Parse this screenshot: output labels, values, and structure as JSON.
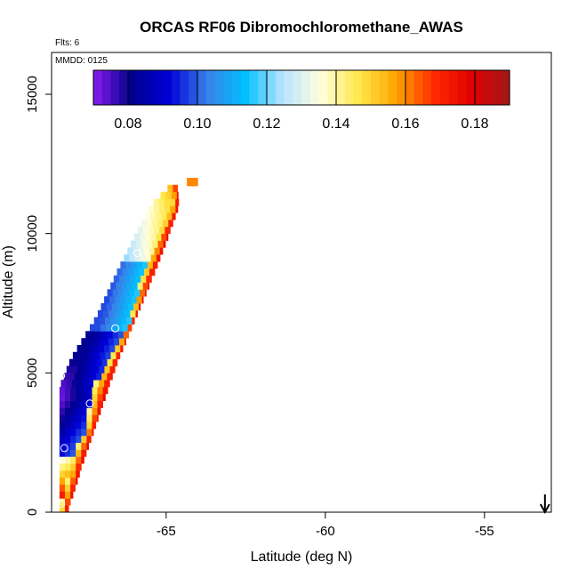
{
  "chart_data": {
    "type": "heatmap",
    "title": "ORCAS RF06 Dibromochloromethane_AWAS",
    "xlabel": "Latitude (deg N)",
    "ylabel": "Altitude (m)",
    "flights_label": "Flts: 6",
    "date_label": "MMDD: 0125",
    "xlim": [
      -68.6,
      -52.9
    ],
    "ylim": [
      0,
      16500
    ],
    "x_ticks": [
      -65,
      -60,
      -55
    ],
    "x_tick_labels": [
      "-65",
      "-60",
      "-55"
    ],
    "y_ticks": [
      0,
      5000,
      10000,
      15000
    ],
    "y_tick_labels": [
      "0",
      "5000",
      "10000",
      "15000"
    ],
    "colorbar": {
      "min": 0.07,
      "max": 0.19,
      "ticks": [
        0.08,
        0.1,
        0.12,
        0.14,
        0.16,
        0.18
      ],
      "tick_labels": [
        "0.08",
        "0.10",
        "0.12",
        "0.14",
        "0.16",
        "0.18"
      ],
      "colors": [
        "#8a1cf0",
        "#00008c",
        "#0000d8",
        "#3a7fe8",
        "#00bfff",
        "#b8e4ff",
        "#ffffe0",
        "#ffe94a",
        "#ffa500",
        "#ff2a00",
        "#e00000",
        "#a01818"
      ]
    },
    "arrow": {
      "lat": -53.1,
      "direction": "down"
    },
    "samples": [
      {
        "lat": -68.3,
        "alt": 300,
        "value": 0.12
      },
      {
        "lat": -68.2,
        "alt": 2300,
        "value": 0.11
      },
      {
        "lat": -68.3,
        "alt": 4900,
        "value": 0.1
      },
      {
        "lat": -67.4,
        "alt": 3900,
        "value": 0.08
      },
      {
        "lat": -66.6,
        "alt": 6600,
        "value": 0.1
      },
      {
        "lat": -65.9,
        "alt": 9300,
        "value": 0.11
      }
    ],
    "band": [
      {
        "y": 0,
        "xl": -68.35,
        "inner": -68.35,
        "xr": -68.1
      },
      {
        "y": 2000,
        "xl": -68.35,
        "inner": -67.95,
        "xr": -67.55
      },
      {
        "y": 3000,
        "xl": -68.35,
        "inner": -67.5,
        "xr": -67.25
      },
      {
        "y": 4500,
        "xl": -68.35,
        "inner": -67.3,
        "xr": -66.8
      },
      {
        "y": 5500,
        "xl": -68.0,
        "inner": -66.75,
        "xr": -66.5
      },
      {
        "y": 7000,
        "xl": -67.2,
        "inner": -66.1,
        "xr": -65.95
      },
      {
        "y": 8500,
        "xl": -66.6,
        "inner": -65.75,
        "xr": -65.4
      },
      {
        "y": 10000,
        "xl": -65.95,
        "inner": -65.25,
        "xr": -64.9
      },
      {
        "y": 11000,
        "xl": -65.5,
        "inner": -64.85,
        "xr": -64.6
      },
      {
        "y": 11750,
        "xl": -64.85,
        "inner": -64.85,
        "xr": -64.65
      }
    ],
    "cap": [
      {
        "lat": -64.25,
        "alt": 11850,
        "value": 0.16
      },
      {
        "lat": -64.1,
        "alt": 11850,
        "value": 0.16
      }
    ]
  }
}
